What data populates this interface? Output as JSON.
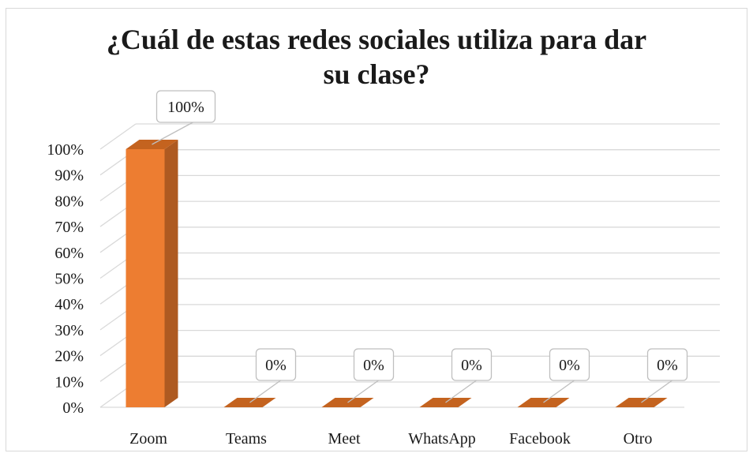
{
  "chart_data": {
    "type": "bar",
    "title_lines": [
      "¿Cuál de estas redes sociales utiliza para dar",
      "su clase?"
    ],
    "categories": [
      "Zoom",
      "Teams",
      "Meet",
      "WhatsApp",
      "Facebook",
      "Otro"
    ],
    "values": [
      100,
      0,
      0,
      0,
      0,
      0
    ],
    "data_labels": [
      "100%",
      "0%",
      "0%",
      "0%",
      "0%",
      "0%"
    ],
    "y_ticks": [
      "0%",
      "10%",
      "20%",
      "30%",
      "40%",
      "50%",
      "60%",
      "70%",
      "80%",
      "90%",
      "100%"
    ],
    "ylim": [
      0,
      100
    ],
    "grid": true,
    "three_d": true,
    "colors": {
      "bar_front": "#ED7D31",
      "bar_side": "#AE5A21",
      "bar_top": "#C4631F",
      "grid": "#d9d9d9",
      "label_border": "#bfbfbf"
    }
  }
}
